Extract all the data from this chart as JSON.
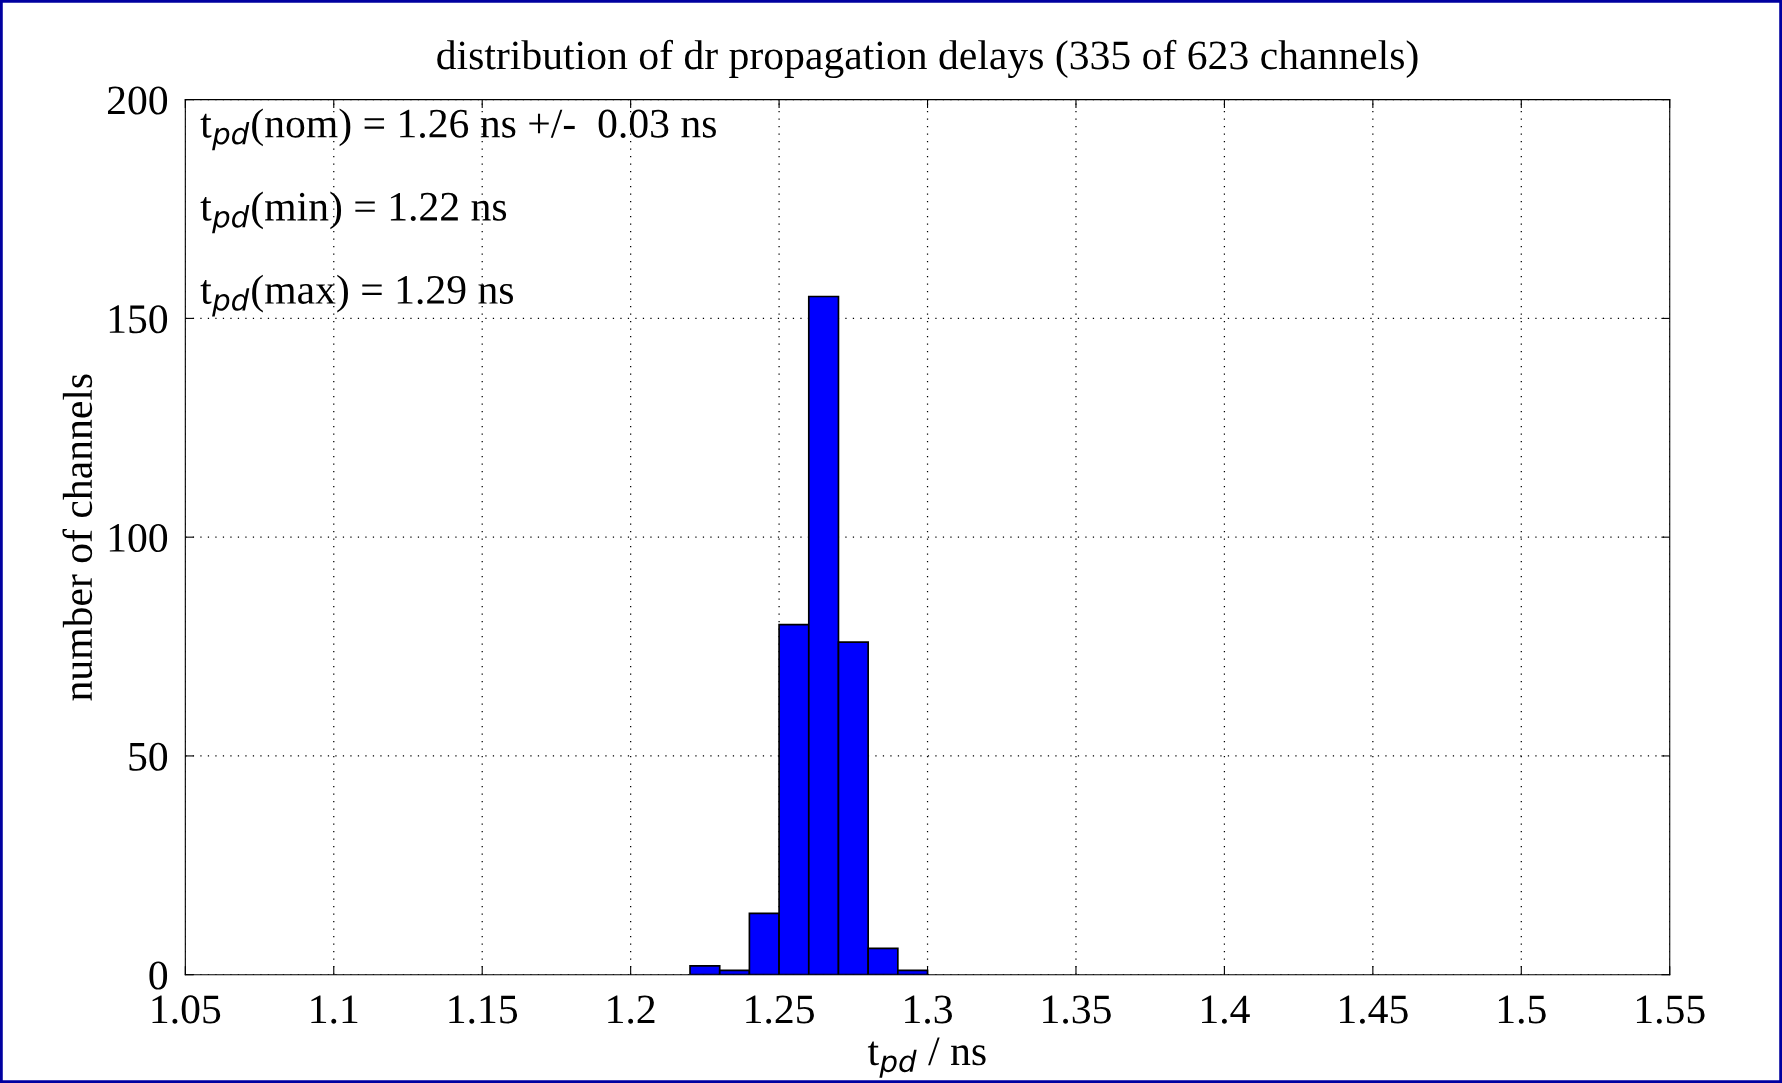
{
  "chart_data": {
    "type": "histogram",
    "title": "distribution of dr propagation delays (335 of 623 channels)",
    "xlabel": "t$_{pd}$ / ns",
    "ylabel": "number of channels",
    "bins": [
      1.22,
      1.23,
      1.24,
      1.25,
      1.26,
      1.27,
      1.28,
      1.29,
      1.3
    ],
    "values": [
      2,
      1,
      14,
      80,
      155,
      76,
      6,
      1
    ],
    "color": "#0000ff",
    "xlim": [
      1.05,
      1.55
    ],
    "xticks": [
      1.05,
      1.1,
      1.15,
      1.2,
      1.25,
      1.3,
      1.35,
      1.4,
      1.45,
      1.5,
      1.55
    ],
    "ylim": [
      0,
      200
    ],
    "yticks": [
      0,
      50,
      100,
      150,
      200
    ],
    "grid": true,
    "annotations": [
      "t$_{pd}$(nom) = 1.26 ns +/-  0.03 ns",
      "t$_{pd}$(min) = 1.22 ns",
      "t$_{pd}$(max) = 1.29 ns"
    ]
  }
}
